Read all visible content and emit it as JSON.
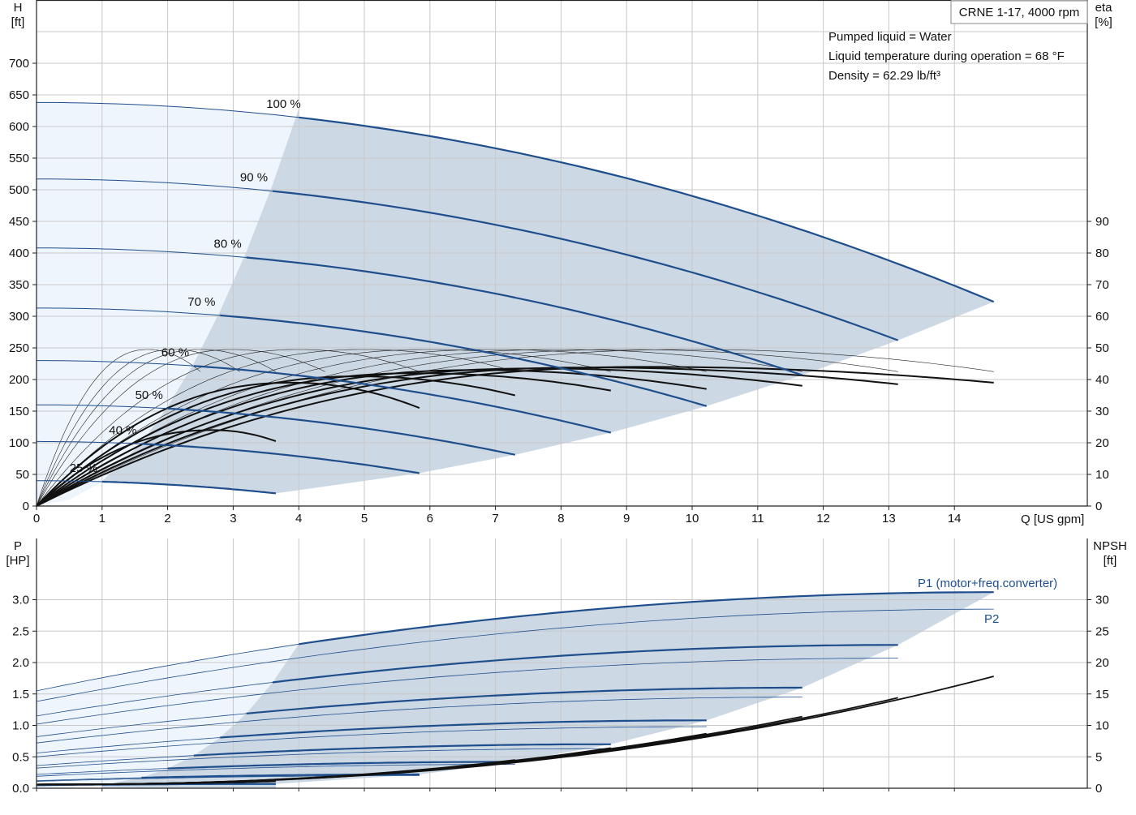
{
  "chart_data": [
    {
      "id": "head-eta",
      "type": "line",
      "title_box": "CRNE 1-17, 4000 rpm",
      "info": [
        "Pumped liquid = Water",
        "Liquid temperature during operation = 68 °F",
        "Density = 62.29 lb/ft³"
      ],
      "left_axis": {
        "label_line1": "H",
        "label_line2": "[ft]",
        "ylim": [
          0,
          700
        ],
        "ticks": [
          0,
          50,
          100,
          150,
          200,
          250,
          300,
          350,
          400,
          450,
          500,
          550,
          600,
          650,
          700
        ]
      },
      "right_axis": {
        "label_line1": "eta",
        "label_line2": "[%]",
        "ylim": [
          0,
          90
        ],
        "ticks": [
          0,
          10,
          20,
          30,
          40,
          50,
          60,
          70,
          80,
          90
        ]
      },
      "x_axis": {
        "label": "Q [US gpm]",
        "xlim": [
          0,
          14.6
        ],
        "ticks": [
          0,
          1,
          2,
          3,
          4,
          5,
          6,
          7,
          8,
          9,
          10,
          11,
          12,
          13,
          14
        ]
      },
      "grid": true,
      "speed_labels": [
        "100 %",
        "90 %",
        "80 %",
        "70 %",
        "60 %",
        "50 %",
        "40 %",
        "25 %"
      ],
      "head_curves": [
        {
          "speed": 100,
          "h0": 638,
          "hmin": 628,
          "qmin": 4.0,
          "qmax": 14.6,
          "hmax_q": 323
        },
        {
          "speed": 90,
          "h0": 517,
          "hmin": 508,
          "qmin": 3.6,
          "qmax": 13.14,
          "hmax_q": 262
        },
        {
          "speed": 80,
          "h0": 408,
          "hmin": 402,
          "qmin": 3.2,
          "qmax": 11.68,
          "hmax_q": 207
        },
        {
          "speed": 70,
          "h0": 313,
          "hmin": 308,
          "qmin": 2.8,
          "qmax": 10.22,
          "hmax_q": 158
        },
        {
          "speed": 60,
          "h0": 230,
          "hmin": 226,
          "qmin": 2.4,
          "qmax": 8.76,
          "hmax_q": 116
        },
        {
          "speed": 50,
          "h0": 160,
          "hmin": 157,
          "qmin": 2.0,
          "qmax": 7.3,
          "hmax_q": 81
        },
        {
          "speed": 40,
          "h0": 102,
          "hmin": 100,
          "qmin": 1.6,
          "qmax": 5.84,
          "hmax_q": 52
        },
        {
          "speed": 25,
          "h0": 40,
          "hmin": 39,
          "qmin": 1.0,
          "qmax": 3.65,
          "hmax_q": 20
        }
      ],
      "eta_curves": [
        {
          "speed": 100,
          "qmax": 14.6,
          "eta_peak": 44,
          "q_peak": 9.3,
          "eta_end": 39
        },
        {
          "speed": 90,
          "qmax": 13.14,
          "eta_peak": 43.8,
          "q_peak": 8.4,
          "eta_end": 38.5
        },
        {
          "speed": 80,
          "qmax": 11.68,
          "eta_peak": 43.5,
          "q_peak": 7.6,
          "eta_end": 38
        },
        {
          "speed": 70,
          "qmax": 10.22,
          "eta_peak": 43,
          "q_peak": 6.7,
          "eta_end": 37
        },
        {
          "speed": 60,
          "qmax": 8.76,
          "eta_peak": 42,
          "q_peak": 5.8,
          "eta_end": 36.5
        },
        {
          "speed": 50,
          "qmax": 7.3,
          "eta_peak": 41,
          "q_peak": 4.9,
          "eta_end": 35
        },
        {
          "speed": 40,
          "qmax": 5.84,
          "eta_peak": 39,
          "q_peak": 3.9,
          "eta_end": 31
        },
        {
          "speed": 25,
          "qmax": 3.65,
          "eta_peak": 24,
          "q_peak": 2.7,
          "eta_end": 20.5
        }
      ],
      "eta_thin_curves": [
        {
          "qmax": 14.6,
          "eta_peak": 49.5,
          "q_peak": 10.0,
          "eta_end": 42.5
        },
        {
          "qmax": 13.14,
          "eta_peak": 49.5,
          "q_peak": 9.0,
          "eta_end": 42.5
        },
        {
          "qmax": 11.68,
          "eta_peak": 49.5,
          "q_peak": 8.0,
          "eta_end": 42.5
        },
        {
          "qmax": 10.22,
          "eta_peak": 49.5,
          "q_peak": 7.0,
          "eta_end": 42.5
        },
        {
          "qmax": 8.76,
          "eta_peak": 49.5,
          "q_peak": 6.0,
          "eta_end": 42.5
        },
        {
          "qmax": 7.3,
          "eta_peak": 49.5,
          "q_peak": 5.0,
          "eta_end": 42.5
        },
        {
          "qmax": 5.84,
          "eta_peak": 49.5,
          "q_peak": 4.0,
          "eta_end": 42.5
        },
        {
          "qmax": 4.4,
          "eta_peak": 49.5,
          "q_peak": 3.0,
          "eta_end": 42.5
        },
        {
          "qmax": 3.65,
          "eta_peak": 49.5,
          "q_peak": 2.5,
          "eta_end": 42.5
        },
        {
          "qmax": 3.1,
          "eta_peak": 49.5,
          "q_peak": 2.1,
          "eta_end": 42.5
        },
        {
          "qmax": 2.5,
          "eta_peak": 49.5,
          "q_peak": 1.7,
          "eta_end": 42.5
        }
      ],
      "shaded_region": {
        "light": {
          "q_left": 0,
          "q_boundary": [
            [
              4.0,
              628
            ],
            [
              0.0,
              0
            ]
          ]
        },
        "dark_boundary_min_flow": [
          [
            4.0,
            628
          ],
          [
            3.6,
            508
          ],
          [
            3.2,
            402
          ],
          [
            2.8,
            308
          ],
          [
            2.4,
            226
          ],
          [
            2.0,
            157
          ],
          [
            1.6,
            100
          ],
          [
            1.0,
            39
          ],
          [
            0.5,
            10
          ]
        ],
        "dark_boundary_max_flow": [
          [
            14.6,
            323
          ],
          [
            13.14,
            262
          ],
          [
            11.68,
            207
          ],
          [
            10.22,
            158
          ],
          [
            8.76,
            116
          ],
          [
            7.3,
            81
          ],
          [
            5.84,
            52
          ],
          [
            3.65,
            20
          ]
        ]
      }
    },
    {
      "id": "power-npsh",
      "type": "line",
      "left_axis": {
        "label_line1": "P",
        "label_line2": "[HP]",
        "ylim": [
          0,
          3.4
        ],
        "ticks": [
          0.0,
          0.5,
          1.0,
          1.5,
          2.0,
          2.5,
          3.0
        ]
      },
      "right_axis": {
        "label_line1": "NPSH",
        "label_line2": "[ft]",
        "ylim": [
          0,
          34
        ],
        "ticks": [
          0,
          5,
          10,
          15,
          20,
          25,
          30
        ]
      },
      "x_axis": {
        "xlim": [
          0,
          14.6
        ],
        "ticks": [
          0,
          1,
          2,
          3,
          4,
          5,
          6,
          7,
          8,
          9,
          10,
          11,
          12,
          13,
          14
        ]
      },
      "grid": true,
      "series_labels": {
        "p1": "P1 (motor+freq.converter)",
        "p2": "P2"
      },
      "p1_curves": [
        {
          "speed": 100,
          "q_start": 4.0,
          "p_start": 2.18,
          "qmax": 14.6,
          "p_end": 3.12,
          "p0": 1.55
        },
        {
          "speed": 90,
          "q_start": 3.6,
          "p_start": 1.6,
          "qmax": 13.14,
          "p_end": 2.28,
          "p0": 1.15
        },
        {
          "speed": 80,
          "q_start": 3.2,
          "p_start": 1.12,
          "qmax": 11.68,
          "p_end": 1.6,
          "p0": 0.82
        },
        {
          "speed": 70,
          "q_start": 2.8,
          "p_start": 0.75,
          "qmax": 10.22,
          "p_end": 1.08,
          "p0": 0.56
        },
        {
          "speed": 60,
          "q_start": 2.4,
          "p_start": 0.47,
          "qmax": 8.76,
          "p_end": 0.7,
          "p0": 0.36
        },
        {
          "speed": 50,
          "q_start": 2.0,
          "p_start": 0.28,
          "qmax": 7.3,
          "p_end": 0.42,
          "p0": 0.22
        },
        {
          "speed": 40,
          "q_start": 1.6,
          "p_start": 0.16,
          "qmax": 5.84,
          "p_end": 0.22,
          "p0": 0.12
        },
        {
          "speed": 25,
          "q_start": 1.0,
          "p_start": 0.05,
          "qmax": 3.65,
          "p_end": 0.07,
          "p0": 0.04
        }
      ],
      "p2_curves": [
        {
          "qmax": 14.6,
          "p0": 1.38,
          "p_end": 2.85
        },
        {
          "qmax": 13.14,
          "p0": 1.02,
          "p_end": 2.07
        },
        {
          "qmax": 11.68,
          "p0": 0.72,
          "p_end": 1.45
        },
        {
          "qmax": 10.22,
          "p0": 0.5,
          "p_end": 0.98
        },
        {
          "qmax": 8.76,
          "p0": 0.32,
          "p_end": 0.63
        },
        {
          "qmax": 7.3,
          "p0": 0.19,
          "p_end": 0.38
        },
        {
          "qmax": 5.84,
          "p0": 0.11,
          "p_end": 0.2
        },
        {
          "qmax": 3.65,
          "p0": 0.04,
          "p_end": 0.06
        }
      ],
      "npsh_curves": [
        {
          "qmax": 14.6,
          "npsh_end": 17.8
        },
        {
          "qmax": 13.14,
          "npsh_end": 14.4
        },
        {
          "qmax": 11.68,
          "npsh_end": 11.4
        },
        {
          "qmax": 10.22,
          "npsh_end": 8.7
        },
        {
          "qmax": 8.76,
          "npsh_end": 6.4
        },
        {
          "qmax": 7.3,
          "npsh_end": 4.5
        },
        {
          "qmax": 5.84,
          "npsh_end": 2.8
        },
        {
          "qmax": 3.65,
          "npsh_end": 1.1
        }
      ]
    }
  ],
  "colors": {
    "curve_blue": "#1f4e8c",
    "curve_black": "#111111",
    "shade_dark": "#ccd8e4",
    "shade_light": "#eef5fc",
    "grid": "#c8c8c8"
  }
}
